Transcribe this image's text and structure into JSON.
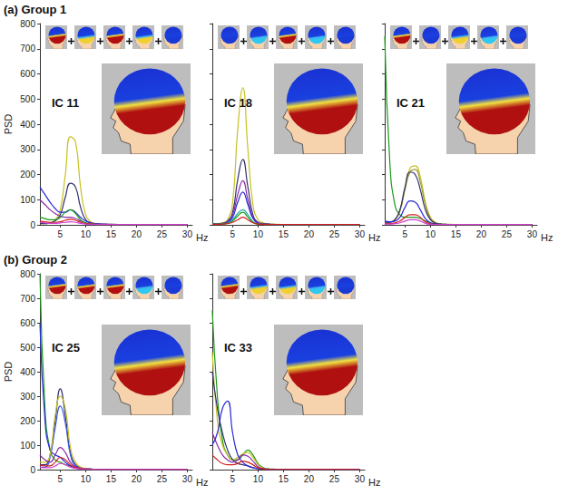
{
  "chart_data": [
    {
      "type": "line",
      "subtitle": "(a) Group 1",
      "title": "IC 11",
      "ylabel": "PSD",
      "xlabel": "Hz",
      "xlim": [
        1,
        31
      ],
      "xticks": [
        5,
        10,
        15,
        20,
        25,
        30
      ],
      "ylim": [
        0,
        800
      ],
      "yticks": [
        0,
        100,
        200,
        300,
        400,
        500,
        600,
        700,
        800
      ],
      "grid": false,
      "x": [
        1,
        2,
        3,
        4,
        5,
        6,
        7,
        8,
        9,
        10,
        11,
        12,
        13,
        14,
        15,
        18,
        21,
        25,
        30
      ],
      "series": [
        {
          "color": "#c8c020",
          "values": [
            5,
            5,
            8,
            20,
            60,
            200,
            350,
            330,
            150,
            40,
            12,
            5,
            3,
            2,
            2,
            1,
            1,
            1,
            1
          ]
        },
        {
          "color": "#303070",
          "values": [
            5,
            5,
            8,
            15,
            40,
            110,
            165,
            150,
            70,
            20,
            8,
            4,
            2,
            2,
            1,
            1,
            1,
            1,
            1
          ]
        },
        {
          "color": "#2828d8",
          "values": [
            150,
            120,
            90,
            65,
            50,
            50,
            60,
            50,
            30,
            15,
            8,
            5,
            3,
            2,
            2,
            1,
            1,
            1,
            1
          ]
        },
        {
          "color": "#8a2aa8",
          "values": [
            100,
            80,
            60,
            45,
            35,
            30,
            30,
            25,
            15,
            8,
            5,
            3,
            2,
            2,
            1,
            1,
            1,
            1,
            1
          ]
        },
        {
          "color": "#1a9a1a",
          "values": [
            30,
            25,
            20,
            20,
            30,
            50,
            60,
            45,
            20,
            8,
            4,
            2,
            1,
            1,
            1,
            1,
            1,
            1,
            1
          ]
        },
        {
          "color": "#d42020",
          "values": [
            15,
            12,
            10,
            10,
            12,
            18,
            22,
            18,
            10,
            5,
            3,
            2,
            1,
            1,
            1,
            1,
            1,
            1,
            1
          ]
        },
        {
          "color": "#d040d0",
          "values": [
            10,
            8,
            6,
            6,
            8,
            10,
            12,
            10,
            6,
            3,
            2,
            1,
            1,
            1,
            1,
            1,
            1,
            1,
            1
          ]
        }
      ]
    },
    {
      "type": "line",
      "title": "IC 18",
      "xlabel": "Hz",
      "tick_labels": "x",
      "xlim": [
        1,
        31
      ],
      "xticks": [
        5,
        10,
        15,
        20,
        25,
        30
      ],
      "ylim": [
        0,
        800
      ],
      "yticks": [
        0,
        100,
        200,
        300,
        400,
        500,
        600,
        700,
        800
      ],
      "grid": false,
      "x": [
        1,
        2,
        3,
        4,
        5,
        6,
        7,
        8,
        9,
        10,
        11,
        12,
        13,
        14,
        15,
        18,
        21,
        25,
        30
      ],
      "series": [
        {
          "color": "#c8c020",
          "values": [
            5,
            5,
            8,
            20,
            90,
            380,
            545,
            300,
            80,
            20,
            8,
            4,
            2,
            2,
            1,
            1,
            1,
            1,
            1
          ]
        },
        {
          "color": "#303070",
          "values": [
            5,
            5,
            6,
            15,
            50,
            180,
            260,
            150,
            40,
            10,
            5,
            3,
            2,
            1,
            1,
            1,
            1,
            1,
            1
          ]
        },
        {
          "color": "#8a2aa8",
          "values": [
            5,
            5,
            6,
            12,
            40,
            120,
            175,
            100,
            30,
            8,
            4,
            2,
            1,
            1,
            1,
            1,
            1,
            1,
            1
          ]
        },
        {
          "color": "#2828d8",
          "values": [
            5,
            5,
            5,
            10,
            30,
            90,
            130,
            80,
            25,
            6,
            3,
            2,
            1,
            1,
            1,
            1,
            1,
            1,
            1
          ]
        },
        {
          "color": "#18a8a8",
          "values": [
            3,
            3,
            4,
            8,
            20,
            45,
            60,
            40,
            12,
            4,
            2,
            1,
            1,
            1,
            1,
            1,
            1,
            1,
            1
          ]
        },
        {
          "color": "#1a9a1a",
          "values": [
            3,
            3,
            4,
            6,
            15,
            35,
            50,
            30,
            10,
            3,
            2,
            1,
            1,
            1,
            1,
            1,
            1,
            1,
            1
          ]
        },
        {
          "color": "#d42020",
          "values": [
            2,
            2,
            3,
            5,
            10,
            20,
            30,
            20,
            8,
            3,
            2,
            1,
            1,
            1,
            1,
            1,
            1,
            1,
            1
          ]
        }
      ]
    },
    {
      "type": "line",
      "title": "IC 21",
      "xlabel": "Hz",
      "tick_labels": "x",
      "xlim": [
        1,
        31
      ],
      "xticks": [
        5,
        10,
        15,
        20,
        25,
        30
      ],
      "ylim": [
        0,
        800
      ],
      "yticks": [
        0,
        100,
        200,
        300,
        400,
        500,
        600,
        700,
        800
      ],
      "grid": false,
      "x": [
        1,
        2,
        3,
        4,
        5,
        6,
        7,
        8,
        9,
        10,
        11,
        12,
        13,
        14,
        15,
        18,
        21,
        25,
        30
      ],
      "series": [
        {
          "color": "#1a9a1a",
          "values": [
            750,
            250,
            80,
            40,
            30,
            30,
            30,
            25,
            15,
            8,
            4,
            2,
            1,
            1,
            1,
            1,
            1,
            1,
            1
          ]
        },
        {
          "color": "#c8c020",
          "values": [
            10,
            10,
            20,
            60,
            150,
            225,
            235,
            190,
            90,
            30,
            10,
            4,
            2,
            2,
            1,
            1,
            1,
            1,
            1
          ]
        },
        {
          "color": "#9a9a30",
          "values": [
            10,
            10,
            20,
            55,
            140,
            210,
            220,
            170,
            80,
            25,
            8,
            3,
            2,
            1,
            1,
            1,
            1,
            1,
            1
          ]
        },
        {
          "color": "#303070",
          "values": [
            10,
            10,
            20,
            60,
            150,
            210,
            200,
            140,
            60,
            20,
            6,
            3,
            2,
            1,
            1,
            1,
            1,
            1,
            1
          ]
        },
        {
          "color": "#2828d8",
          "values": [
            15,
            12,
            15,
            30,
            70,
            95,
            90,
            60,
            25,
            8,
            3,
            2,
            1,
            1,
            1,
            1,
            1,
            1,
            1
          ]
        },
        {
          "color": "#d42020",
          "values": [
            5,
            5,
            8,
            15,
            30,
            40,
            40,
            30,
            12,
            4,
            2,
            1,
            1,
            1,
            1,
            1,
            1,
            1,
            1
          ]
        },
        {
          "color": "#d040d0",
          "values": [
            3,
            3,
            5,
            8,
            15,
            20,
            20,
            15,
            6,
            2,
            1,
            1,
            1,
            1,
            1,
            1,
            1,
            1,
            1
          ]
        }
      ]
    },
    {
      "type": "line",
      "subtitle": "(b) Group 2",
      "title": "IC 25",
      "ylabel": "PSD",
      "xlabel": "Hz",
      "xlim": [
        1,
        31
      ],
      "xticks": [
        5,
        10,
        15,
        20,
        25,
        30
      ],
      "ylim": [
        0,
        800
      ],
      "yticks": [
        0,
        100,
        200,
        300,
        400,
        500,
        600,
        700,
        800
      ],
      "grid": false,
      "x": [
        1,
        2,
        3,
        4,
        5,
        6,
        7,
        8,
        9,
        10,
        11,
        12,
        13,
        14,
        15,
        18,
        21,
        25,
        30
      ],
      "series": [
        {
          "color": "#1a9a1a",
          "values": [
            800,
            250,
            80,
            40,
            30,
            20,
            15,
            10,
            6,
            4,
            2,
            1,
            1,
            1,
            1,
            1,
            1,
            1,
            1
          ]
        },
        {
          "color": "#2828d8",
          "values": [
            600,
            200,
            80,
            60,
            50,
            30,
            15,
            8,
            4,
            2,
            1,
            1,
            1,
            1,
            1,
            1,
            1,
            1,
            1
          ]
        },
        {
          "color": "#303070",
          "values": [
            20,
            20,
            60,
            200,
            330,
            220,
            70,
            20,
            8,
            4,
            2,
            1,
            1,
            1,
            1,
            1,
            1,
            1,
            1
          ]
        },
        {
          "color": "#3a5ae8",
          "values": [
            10,
            10,
            50,
            170,
            260,
            190,
            60,
            15,
            6,
            3,
            2,
            1,
            1,
            1,
            1,
            1,
            1,
            1,
            1
          ]
        },
        {
          "color": "#c8c020",
          "values": [
            30,
            30,
            60,
            220,
            300,
            250,
            90,
            30,
            10,
            4,
            2,
            1,
            1,
            1,
            1,
            1,
            1,
            1,
            1
          ]
        },
        {
          "color": "#8a2aa8",
          "values": [
            60,
            40,
            30,
            60,
            90,
            70,
            30,
            12,
            6,
            3,
            2,
            1,
            1,
            1,
            1,
            1,
            1,
            1,
            1
          ]
        },
        {
          "color": "#d42020",
          "values": [
            20,
            15,
            15,
            30,
            50,
            40,
            20,
            8,
            4,
            2,
            1,
            1,
            1,
            1,
            1,
            1,
            1,
            1,
            1
          ]
        },
        {
          "color": "#d040d0",
          "values": [
            10,
            8,
            8,
            15,
            25,
            20,
            10,
            5,
            2,
            1,
            1,
            1,
            1,
            1,
            1,
            1,
            1,
            1,
            1
          ]
        }
      ]
    },
    {
      "type": "line",
      "title": "IC 33",
      "xlabel": "Hz",
      "tick_labels": "x",
      "xlim": [
        1,
        31
      ],
      "xticks": [
        5,
        10,
        15,
        20,
        25,
        30
      ],
      "ylim": [
        0,
        800
      ],
      "yticks": [
        0,
        100,
        200,
        300,
        400,
        500,
        600,
        700,
        800
      ],
      "grid": false,
      "x": [
        1,
        2,
        3,
        4,
        5,
        6,
        7,
        8,
        9,
        10,
        11,
        12,
        13,
        14,
        15,
        18,
        21,
        25,
        30
      ],
      "series": [
        {
          "color": "#1a9a1a",
          "values": [
            650,
            300,
            120,
            60,
            40,
            40,
            60,
            80,
            60,
            25,
            8,
            3,
            2,
            1,
            1,
            1,
            1,
            1,
            1
          ]
        },
        {
          "color": "#c8c020",
          "values": [
            480,
            200,
            100,
            60,
            40,
            50,
            65,
            70,
            50,
            20,
            6,
            2,
            1,
            1,
            1,
            1,
            1,
            1,
            1
          ]
        },
        {
          "color": "#303070",
          "values": [
            400,
            250,
            150,
            80,
            40,
            25,
            20,
            15,
            8,
            4,
            2,
            1,
            1,
            1,
            1,
            1,
            1,
            1,
            1
          ]
        },
        {
          "color": "#2828d8",
          "values": [
            100,
            150,
            250,
            280,
            150,
            60,
            30,
            15,
            8,
            4,
            2,
            1,
            1,
            1,
            1,
            1,
            1,
            1,
            1
          ]
        },
        {
          "color": "#8a2aa8",
          "values": [
            150,
            100,
            60,
            40,
            30,
            40,
            60,
            55,
            35,
            12,
            4,
            2,
            1,
            1,
            1,
            1,
            1,
            1,
            1
          ]
        },
        {
          "color": "#d42020",
          "values": [
            60,
            40,
            25,
            20,
            20,
            25,
            35,
            30,
            20,
            8,
            3,
            1,
            1,
            1,
            1,
            1,
            1,
            1,
            1
          ]
        }
      ]
    }
  ]
}
